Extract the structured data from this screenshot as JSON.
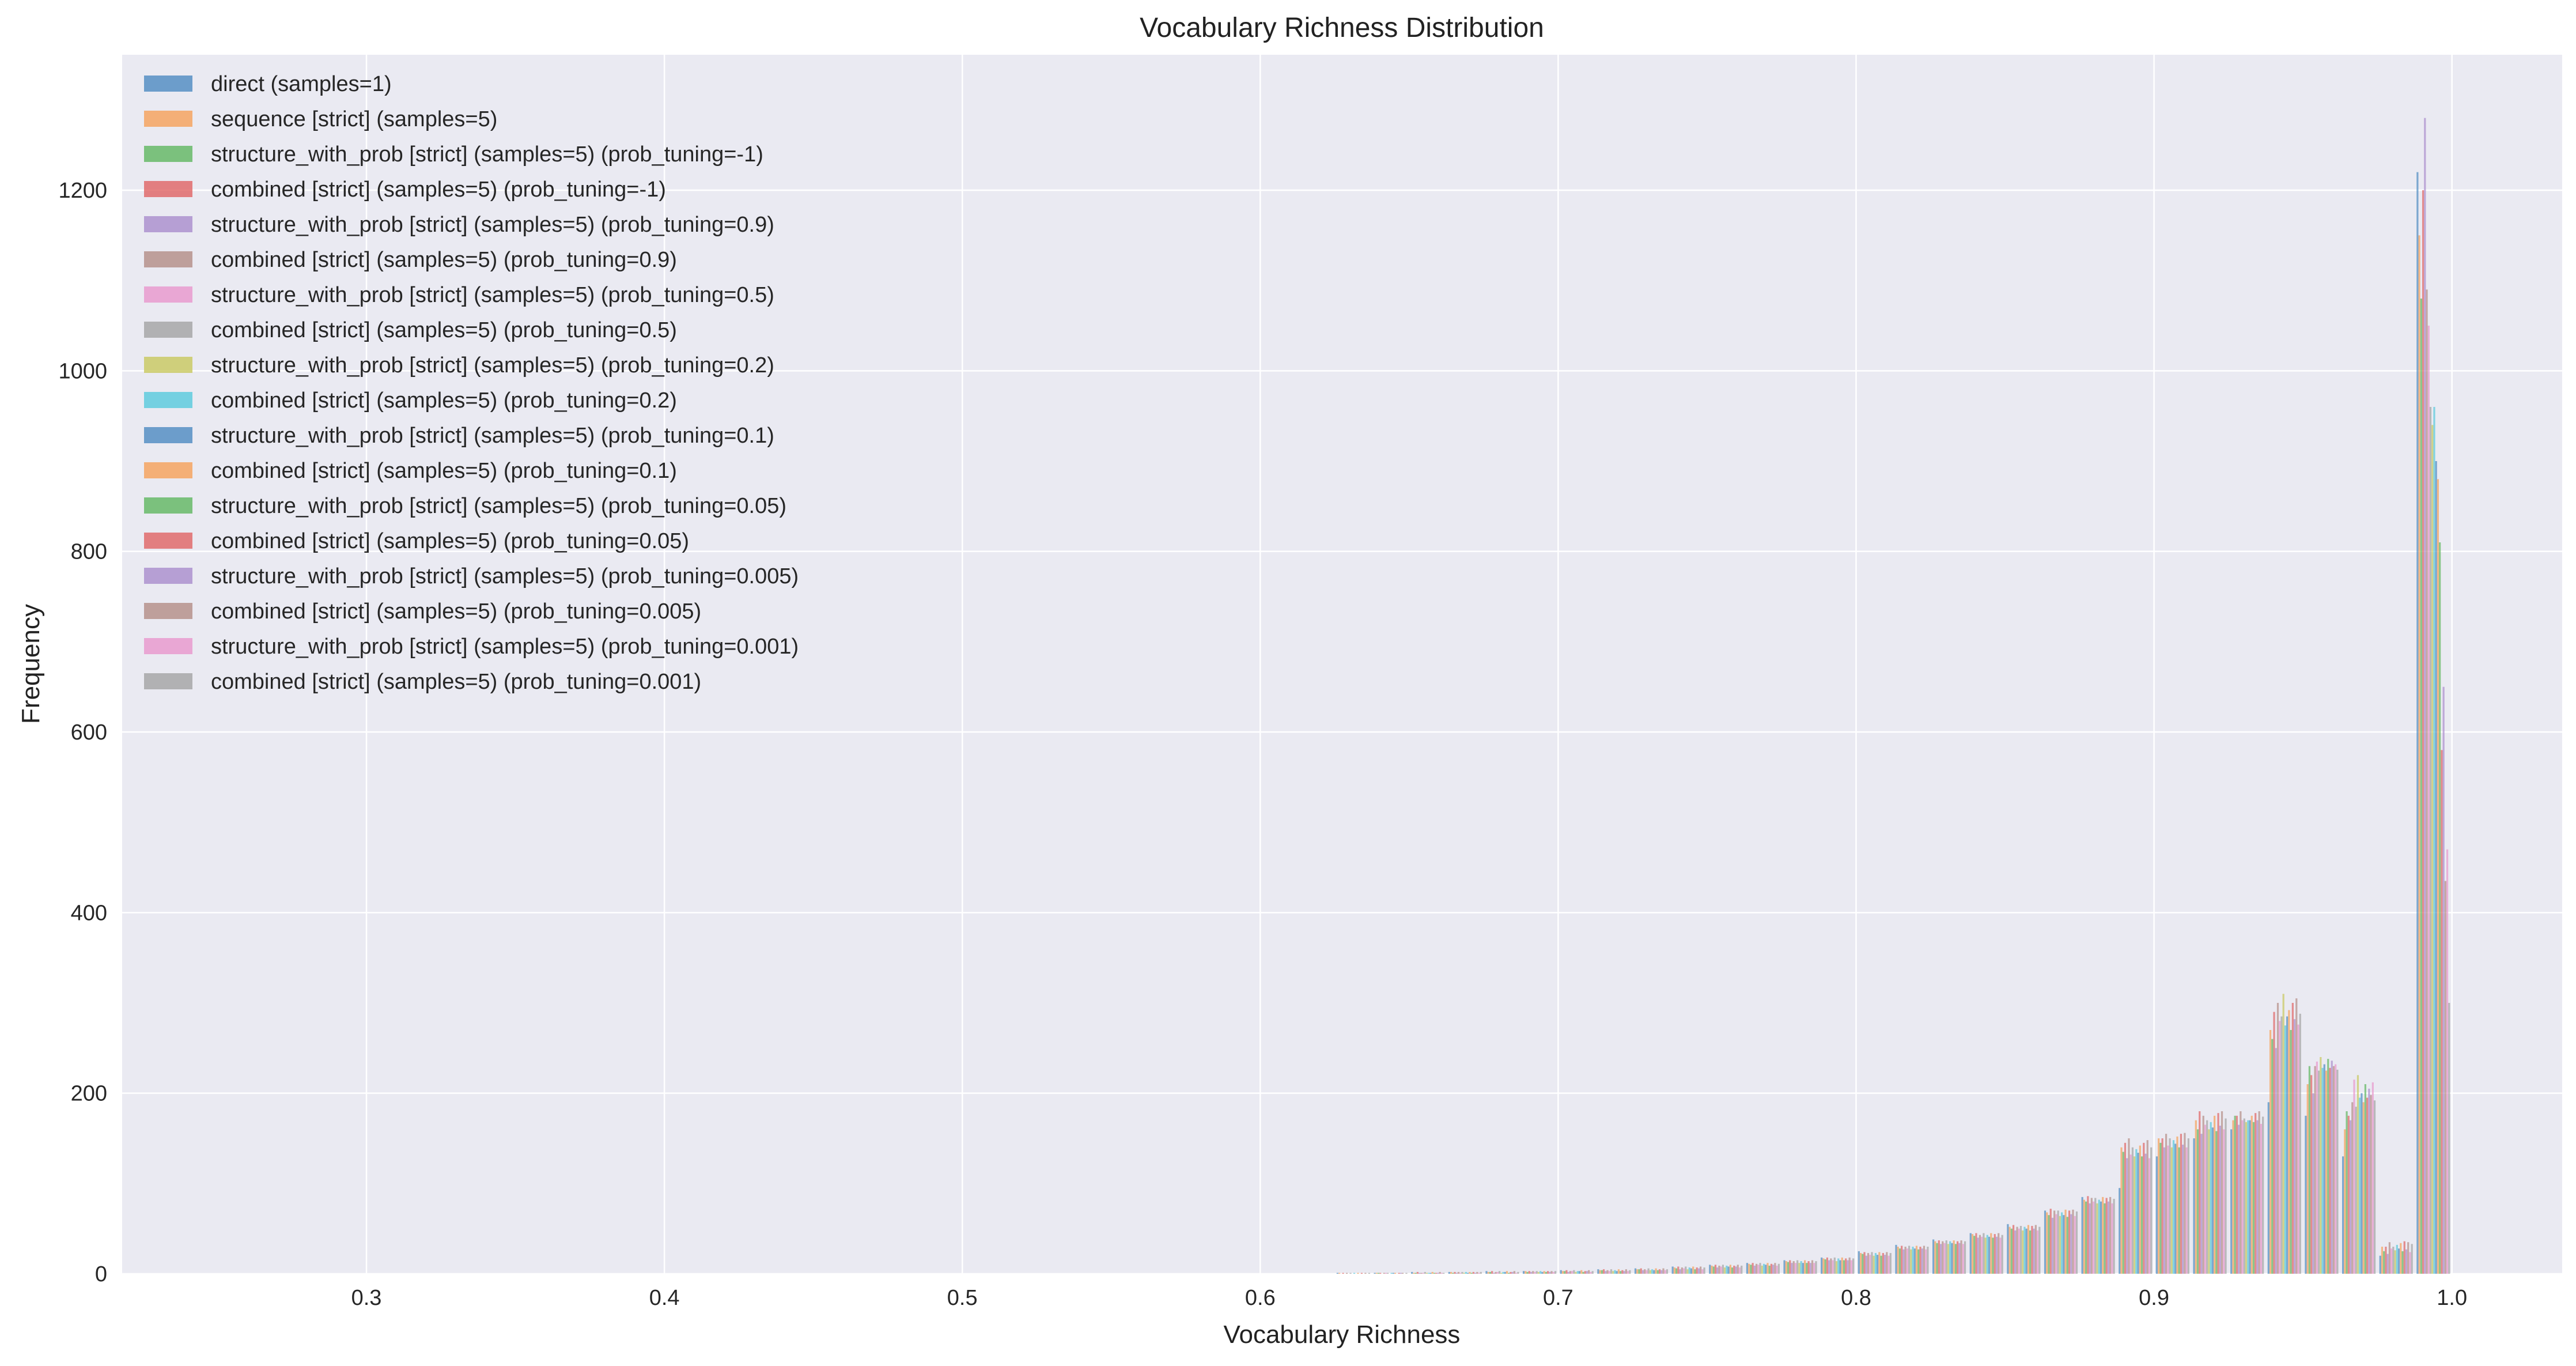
{
  "chart_data": {
    "type": "histogram",
    "title": "Vocabulary Richness Distribution",
    "xlabel": "Vocabulary Richness",
    "ylabel": "Frequency",
    "xlim": [
      0.218,
      1.037
    ],
    "ylim": [
      0,
      1350
    ],
    "x_ticks": [
      0.3,
      0.4,
      0.5,
      0.6,
      0.7,
      0.8,
      0.9,
      1.0
    ],
    "x_tick_labels": [
      "0.3",
      "0.4",
      "0.5",
      "0.6",
      "0.7",
      "0.8",
      "0.9",
      "1.0"
    ],
    "y_ticks": [
      0,
      200,
      400,
      600,
      800,
      1000,
      1200
    ],
    "y_tick_labels": [
      "0",
      "200",
      "400",
      "600",
      "800",
      "1000",
      "1200"
    ],
    "grid": true,
    "legend_position": "top-left",
    "bin_width": 0.0125,
    "bin_starts": [
      0.625,
      0.6375,
      0.65,
      0.6625,
      0.675,
      0.6875,
      0.7,
      0.7125,
      0.725,
      0.7375,
      0.75,
      0.7625,
      0.775,
      0.7875,
      0.8,
      0.8125,
      0.825,
      0.8375,
      0.85,
      0.8625,
      0.875,
      0.8875,
      0.9,
      0.9125,
      0.925,
      0.9375,
      0.95,
      0.9625,
      0.975,
      0.9875
    ],
    "series": [
      {
        "name": "direct (samples=1)",
        "color": "#4c8ac0",
        "values": [
          1,
          1,
          2,
          2,
          3,
          3,
          4,
          5,
          6,
          8,
          10,
          12,
          15,
          18,
          25,
          32,
          38,
          45,
          55,
          70,
          85,
          95,
          130,
          150,
          160,
          190,
          175,
          130,
          20,
          1220
        ]
      },
      {
        "name": "sequence [strict] (samples=5)",
        "color": "#f6a057",
        "values": [
          1,
          1,
          1,
          2,
          2,
          3,
          3,
          4,
          5,
          7,
          9,
          11,
          14,
          17,
          23,
          30,
          36,
          44,
          52,
          68,
          82,
          140,
          150,
          170,
          170,
          270,
          210,
          160,
          30,
          1150
        ]
      },
      {
        "name": "structure_with_prob [strict] (samples=5) (prob_tuning=-1)",
        "color": "#5fb75f",
        "values": [
          0,
          1,
          1,
          1,
          2,
          2,
          3,
          4,
          5,
          6,
          8,
          10,
          13,
          16,
          22,
          28,
          34,
          42,
          50,
          65,
          80,
          135,
          145,
          160,
          175,
          260,
          230,
          180,
          25,
          1080
        ]
      },
      {
        "name": "combined [strict] (samples=5) (prob_tuning=-1)",
        "color": "#e06363",
        "values": [
          1,
          1,
          2,
          2,
          3,
          3,
          4,
          5,
          6,
          8,
          10,
          12,
          15,
          18,
          24,
          31,
          37,
          45,
          54,
          72,
          86,
          145,
          150,
          180,
          175,
          290,
          220,
          175,
          30,
          1200
        ]
      },
      {
        "name": "structure_with_prob [strict] (samples=5) (prob_tuning=0.9)",
        "color": "#a98ccc",
        "values": [
          0,
          0,
          1,
          1,
          1,
          2,
          2,
          3,
          4,
          5,
          7,
          9,
          12,
          15,
          20,
          27,
          33,
          40,
          48,
          62,
          78,
          128,
          140,
          155,
          165,
          250,
          200,
          170,
          22,
          1280
        ]
      },
      {
        "name": "combined [strict] (samples=5) (prob_tuning=0.9)",
        "color": "#b38c84",
        "values": [
          1,
          1,
          1,
          2,
          2,
          3,
          3,
          4,
          5,
          7,
          9,
          11,
          14,
          17,
          23,
          30,
          36,
          43,
          52,
          70,
          84,
          150,
          155,
          175,
          180,
          300,
          230,
          190,
          35,
          1090
        ]
      },
      {
        "name": "structure_with_prob [strict] (samples=5) (prob_tuning=0.5)",
        "color": "#e896cc",
        "values": [
          0,
          1,
          1,
          1,
          2,
          2,
          3,
          3,
          4,
          6,
          8,
          10,
          12,
          15,
          21,
          28,
          34,
          41,
          50,
          66,
          80,
          132,
          142,
          165,
          170,
          280,
          235,
          215,
          28,
          1050
        ]
      },
      {
        "name": "combined [strict] (samples=5) (prob_tuning=0.5)",
        "color": "#a3a3a3",
        "values": [
          1,
          1,
          2,
          2,
          3,
          3,
          4,
          5,
          6,
          8,
          10,
          12,
          15,
          18,
          24,
          31,
          37,
          45,
          53,
          70,
          84,
          140,
          150,
          170,
          172,
          285,
          225,
          185,
          30,
          960
        ]
      },
      {
        "name": "structure_with_prob [strict] (samples=5) (prob_tuning=0.2)",
        "color": "#c8c85c",
        "values": [
          0,
          0,
          1,
          1,
          1,
          2,
          2,
          3,
          4,
          5,
          7,
          9,
          12,
          14,
          20,
          27,
          33,
          40,
          48,
          64,
          78,
          130,
          140,
          160,
          168,
          310,
          240,
          220,
          26,
          940
        ]
      },
      {
        "name": "combined [strict] (samples=5) (prob_tuning=0.2)",
        "color": "#56c9dc",
        "values": [
          1,
          1,
          1,
          2,
          2,
          3,
          3,
          4,
          5,
          7,
          9,
          11,
          14,
          17,
          23,
          30,
          36,
          43,
          52,
          68,
          82,
          138,
          148,
          168,
          170,
          275,
          228,
          195,
          32,
          960
        ]
      },
      {
        "name": "structure_with_prob [strict] (samples=5) (prob_tuning=0.1)",
        "color": "#4c8ac0",
        "values": [
          0,
          1,
          1,
          1,
          2,
          2,
          3,
          3,
          4,
          6,
          8,
          10,
          12,
          15,
          21,
          28,
          34,
          41,
          50,
          65,
          80,
          134,
          144,
          162,
          170,
          285,
          232,
          200,
          28,
          900
        ]
      },
      {
        "name": "combined [strict] (samples=5) (prob_tuning=0.1)",
        "color": "#f6a057",
        "values": [
          1,
          1,
          2,
          2,
          3,
          3,
          4,
          5,
          6,
          8,
          10,
          12,
          15,
          18,
          24,
          31,
          37,
          45,
          54,
          71,
          85,
          142,
          152,
          175,
          175,
          292,
          225,
          190,
          34,
          880
        ]
      },
      {
        "name": "structure_with_prob [strict] (samples=5) (prob_tuning=0.05)",
        "color": "#5fb75f",
        "values": [
          0,
          0,
          1,
          1,
          1,
          2,
          2,
          3,
          4,
          5,
          7,
          9,
          12,
          15,
          20,
          27,
          33,
          40,
          48,
          63,
          78,
          130,
          140,
          158,
          168,
          270,
          238,
          210,
          25,
          810
        ]
      },
      {
        "name": "combined [strict] (samples=5) (prob_tuning=0.05)",
        "color": "#e06363",
        "values": [
          1,
          1,
          1,
          2,
          2,
          3,
          3,
          4,
          5,
          7,
          9,
          11,
          14,
          17,
          23,
          30,
          36,
          44,
          53,
          70,
          84,
          145,
          155,
          178,
          178,
          300,
          228,
          195,
          36,
          580
        ]
      },
      {
        "name": "structure_with_prob [strict] (samples=5) (prob_tuning=0.005)",
        "color": "#a98ccc",
        "values": [
          0,
          1,
          1,
          1,
          2,
          2,
          3,
          3,
          4,
          6,
          8,
          10,
          12,
          15,
          21,
          28,
          34,
          41,
          50,
          66,
          80,
          133,
          143,
          164,
          170,
          282,
          236,
          205,
          27,
          650
        ]
      },
      {
        "name": "combined [strict] (samples=5) (prob_tuning=0.005)",
        "color": "#b38c84",
        "values": [
          1,
          1,
          2,
          2,
          3,
          3,
          4,
          5,
          6,
          8,
          10,
          12,
          15,
          18,
          24,
          31,
          37,
          45,
          54,
          71,
          85,
          148,
          156,
          180,
          180,
          305,
          230,
          198,
          35,
          435
        ]
      },
      {
        "name": "structure_with_prob [strict] (samples=5) (prob_tuning=0.001)",
        "color": "#e896cc",
        "values": [
          0,
          0,
          1,
          1,
          1,
          2,
          2,
          3,
          4,
          5,
          7,
          9,
          12,
          15,
          20,
          27,
          33,
          40,
          48,
          64,
          78,
          128,
          140,
          160,
          166,
          276,
          232,
          212,
          24,
          470
        ]
      },
      {
        "name": "combined [strict] (samples=5) (prob_tuning=0.001)",
        "color": "#a3a3a3",
        "values": [
          1,
          1,
          1,
          2,
          2,
          3,
          3,
          4,
          5,
          7,
          9,
          11,
          14,
          17,
          23,
          30,
          36,
          43,
          52,
          69,
          83,
          140,
          150,
          172,
          174,
          288,
          226,
          192,
          33,
          300
        ]
      }
    ]
  }
}
